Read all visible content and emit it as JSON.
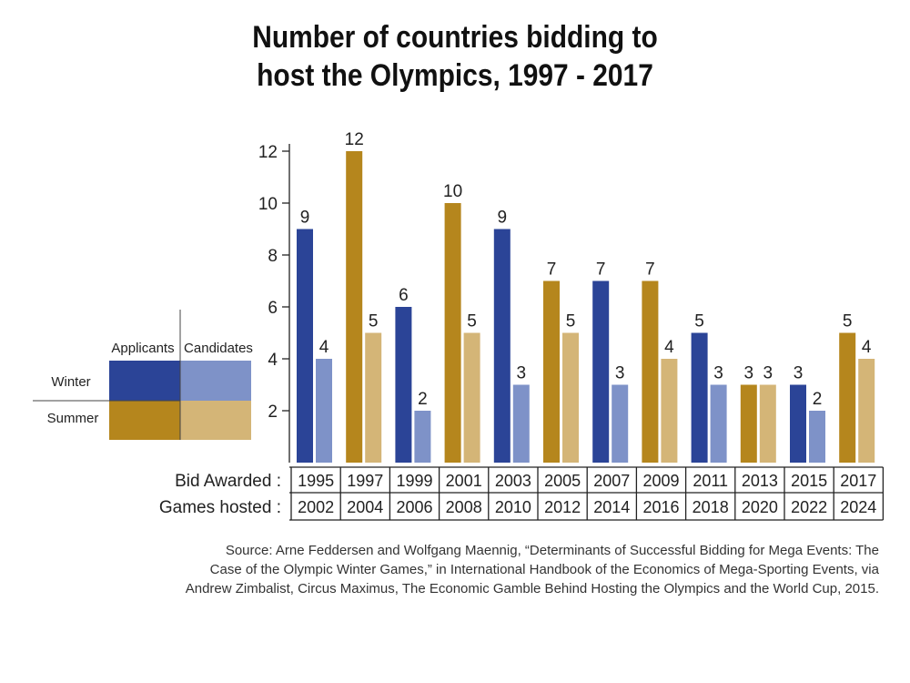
{
  "title_lines": [
    "Number of countries bidding to",
    "host the Olympics, 1997 - 2017"
  ],
  "colors": {
    "winter_applicants": "#2b4497",
    "winter_candidates": "#7e92c8",
    "summer_applicants": "#b5861d",
    "summer_candidates": "#d4b577"
  },
  "legend": {
    "applicants_label": "Applicants",
    "candidates_label": "Candidates",
    "winter_label": "Winter",
    "summer_label": "Summer"
  },
  "table": {
    "bid_label": "Bid Awarded :",
    "games_label": "Games hosted :"
  },
  "chart_data": {
    "type": "bar",
    "title": "Number of countries bidding to host the Olympics, 1997 - 2017",
    "categories": [
      "1995",
      "1997",
      "1999",
      "2001",
      "2003",
      "2005",
      "2007",
      "2009",
      "2011",
      "2013",
      "2015",
      "2017"
    ],
    "games_hosted": [
      "2002",
      "2004",
      "2006",
      "2008",
      "2010",
      "2012",
      "2014",
      "2016",
      "2018",
      "2020",
      "2022",
      "2024"
    ],
    "season": [
      "winter",
      "summer",
      "winter",
      "summer",
      "winter",
      "summer",
      "winter",
      "summer",
      "winter",
      "summer",
      "winter",
      "summer"
    ],
    "series": [
      {
        "name": "Applicants",
        "values": [
          9,
          12,
          6,
          10,
          9,
          7,
          7,
          7,
          5,
          3,
          3,
          5
        ]
      },
      {
        "name": "Candidates",
        "values": [
          4,
          5,
          2,
          5,
          3,
          5,
          3,
          4,
          3,
          3,
          2,
          4
        ]
      }
    ],
    "yticks": [
      2,
      4,
      6,
      8,
      10,
      12
    ],
    "ylim": [
      0,
      12
    ],
    "xlabel": "",
    "ylabel": ""
  },
  "source_lines": [
    "Source: Arne Feddersen and Wolfgang Maennig, “Determinants of Successful Bidding for Mega Events: The",
    "Case of the Olympic Winter Games,” in International Handbook of the Economics of Mega-Sporting Events, via",
    "Andrew Zimbalist, Circus Maximus, The Economic Gamble Behind Hosting the Olympics and the World Cup, 2015."
  ]
}
